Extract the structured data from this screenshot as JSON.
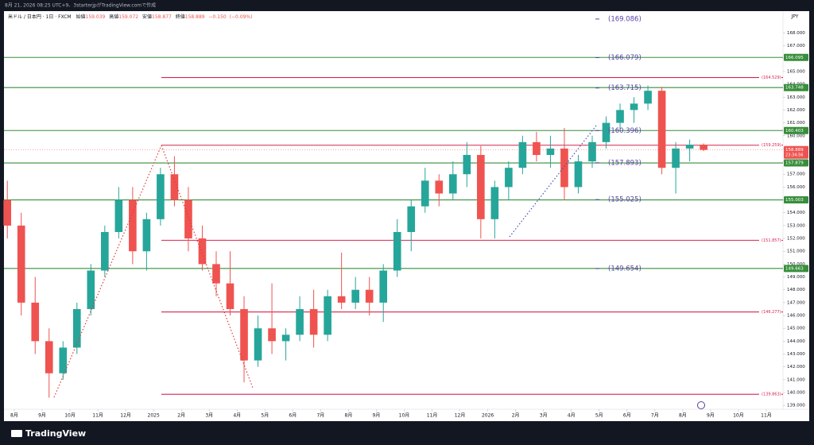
{
  "page_header": "8月 21, 2026 08:25 UTC+9、3starterjpがTradingView.comで作成",
  "footer_brand": "TradingView",
  "chart_data": {
    "type": "candlestick",
    "symbol": "米ドル / 日本円 · 1日 · FXCM",
    "ohlc_header": [
      {
        "name": "始値",
        "value": 159.039
      },
      {
        "name": "高値",
        "value": 159.072
      },
      {
        "name": "安値",
        "value": 158.877
      },
      {
        "name": "終値",
        "value": 158.889
      }
    ],
    "change": {
      "value": -0.15,
      "label": "−0.150"
    },
    "change_pct": {
      "value": -0.09,
      "label": "(−0.09%)"
    },
    "currency": "JPY",
    "last_price": 158.889,
    "countdown": "23:34:56",
    "up_color": "#26a69a",
    "down_color": "#ef5350",
    "xlim": [
      -0.37,
      27.6
    ],
    "ylim": [
      138.7,
      169.7
    ],
    "xticks": [
      {
        "value": 0,
        "label": "8月"
      },
      {
        "value": 1,
        "label": "9月"
      },
      {
        "value": 2,
        "label": "10月"
      },
      {
        "value": 3,
        "label": "11月"
      },
      {
        "value": 4,
        "label": "12月"
      },
      {
        "value": 5,
        "label": "2025"
      },
      {
        "value": 6,
        "label": "2月"
      },
      {
        "value": 7,
        "label": "3月"
      },
      {
        "value": 8,
        "label": "4月"
      },
      {
        "value": 9,
        "label": "5月"
      },
      {
        "value": 10,
        "label": "6月"
      },
      {
        "value": 11,
        "label": "7月"
      },
      {
        "value": 12,
        "label": "8月"
      },
      {
        "value": 13,
        "label": "9月"
      },
      {
        "value": 14,
        "label": "10月"
      },
      {
        "value": 15,
        "label": "11月"
      },
      {
        "value": 16,
        "label": "12月"
      },
      {
        "value": 17,
        "label": "2026"
      },
      {
        "value": 18,
        "label": "2月"
      },
      {
        "value": 19,
        "label": "3月"
      },
      {
        "value": 20,
        "label": "4月"
      },
      {
        "value": 21,
        "label": "5月"
      },
      {
        "value": 22,
        "label": "6月"
      },
      {
        "value": 23,
        "label": "7月"
      },
      {
        "value": 24,
        "label": "8月"
      },
      {
        "value": 25,
        "label": "9月"
      },
      {
        "value": 26,
        "label": "10月"
      },
      {
        "value": 27,
        "label": "11月"
      }
    ],
    "yticks": [
      {
        "value": 139,
        "label": "139.000"
      },
      {
        "value": 140,
        "label": "140.000"
      },
      {
        "value": 141,
        "label": "141.000"
      },
      {
        "value": 142,
        "label": "142.000"
      },
      {
        "value": 143,
        "label": "143.000"
      },
      {
        "value": 144,
        "label": "144.000"
      },
      {
        "value": 145,
        "label": "145.000"
      },
      {
        "value": 146,
        "label": "146.000"
      },
      {
        "value": 147,
        "label": "147.000"
      },
      {
        "value": 148,
        "label": "148.000"
      },
      {
        "value": 149,
        "label": "149.000"
      },
      {
        "value": 150,
        "label": "150.000"
      },
      {
        "value": 151,
        "label": "151.000"
      },
      {
        "value": 152,
        "label": "152.000"
      },
      {
        "value": 153,
        "label": "153.000"
      },
      {
        "value": 154,
        "label": "154.000"
      },
      {
        "value": 155,
        "label": "155.000"
      },
      {
        "value": 156,
        "label": "156.000"
      },
      {
        "value": 157,
        "label": "157.000"
      },
      {
        "value": 158,
        "label": "158.000"
      },
      {
        "value": 159,
        "label": "159.000"
      },
      {
        "value": 160,
        "label": "160.000"
      },
      {
        "value": 161,
        "label": "161.000"
      },
      {
        "value": 162,
        "label": "162.000"
      },
      {
        "value": 163,
        "label": "163.000"
      },
      {
        "value": 164,
        "label": "164.000"
      },
      {
        "value": 165,
        "label": "165.000"
      },
      {
        "value": 166,
        "label": "166.000"
      },
      {
        "value": 167,
        "label": "167.000"
      },
      {
        "value": 168,
        "label": "168.000"
      }
    ],
    "x": [
      -0.25,
      0.25,
      0.75,
      1.25,
      1.75,
      2.25,
      2.75,
      3.25,
      3.75,
      4.25,
      4.75,
      5.25,
      5.75,
      6.25,
      6.75,
      7.25,
      7.75,
      8.25,
      8.75,
      9.25,
      9.75,
      10.25,
      10.75,
      11.25,
      11.75,
      12.25,
      12.75,
      13.25,
      13.75,
      14.25,
      14.75,
      15.25,
      15.75,
      16.25,
      16.75,
      17.25,
      17.75,
      18.25,
      18.75,
      19.25,
      19.75,
      20.25,
      20.75,
      21.25,
      21.75,
      22.25,
      22.75,
      23.25,
      23.75,
      24.25,
      24.75
    ],
    "candles": [
      [
        155,
        156.5,
        152,
        153
      ],
      [
        153,
        154,
        146,
        147
      ],
      [
        147,
        149,
        143,
        144
      ],
      [
        144,
        145,
        139.6,
        141.5
      ],
      [
        141.5,
        144,
        141,
        143.5
      ],
      [
        143.5,
        147,
        143,
        146.5
      ],
      [
        146.5,
        150,
        146,
        149.5
      ],
      [
        149.5,
        153,
        149,
        152.5
      ],
      [
        152.5,
        156,
        152,
        155
      ],
      [
        155,
        156,
        150,
        151
      ],
      [
        151,
        154,
        149.5,
        153.5
      ],
      [
        153.5,
        157.5,
        153,
        157
      ],
      [
        157,
        158.4,
        154.5,
        155
      ],
      [
        155,
        156,
        151,
        152
      ],
      [
        152,
        153,
        149.5,
        150
      ],
      [
        150,
        151,
        147.5,
        148.5
      ],
      [
        148.5,
        151,
        146,
        146.5
      ],
      [
        146.5,
        147.5,
        140.8,
        142.5
      ],
      [
        142.5,
        146,
        142,
        145
      ],
      [
        145,
        148.5,
        143,
        144
      ],
      [
        144,
        145,
        142.5,
        144.5
      ],
      [
        144.5,
        147.5,
        144,
        146.5
      ],
      [
        146.5,
        148,
        143.5,
        144.5
      ],
      [
        144.5,
        148,
        144,
        147.5
      ],
      [
        147.5,
        150.9,
        146.5,
        147
      ],
      [
        147,
        149,
        146.5,
        148
      ],
      [
        148,
        149,
        146,
        147
      ],
      [
        147,
        150,
        145.5,
        149.5
      ],
      [
        149.5,
        153.5,
        149,
        152.5
      ],
      [
        152.5,
        155,
        151,
        154.5
      ],
      [
        154.5,
        157.5,
        154,
        156.5
      ],
      [
        156.5,
        157,
        154.5,
        155.5
      ],
      [
        155.5,
        158,
        155,
        157
      ],
      [
        157,
        159.5,
        156,
        158.5
      ],
      [
        158.5,
        159.2,
        152,
        153.5
      ],
      [
        153.5,
        156.5,
        152,
        156
      ],
      [
        156,
        158,
        155,
        157.5
      ],
      [
        157.5,
        160,
        157,
        159.5
      ],
      [
        159.5,
        160.3,
        158,
        158.5
      ],
      [
        158.5,
        160,
        157.5,
        159
      ],
      [
        159,
        160.6,
        155,
        156
      ],
      [
        156,
        158.5,
        155.5,
        158
      ],
      [
        158,
        160,
        157.5,
        159.5
      ],
      [
        159.5,
        161.5,
        159,
        161
      ],
      [
        161,
        162.5,
        160.5,
        162
      ],
      [
        162,
        163,
        161,
        162.5
      ],
      [
        162.5,
        163.9,
        162,
        163.5
      ],
      [
        163.5,
        163.8,
        157,
        157.5
      ],
      [
        157.5,
        159.5,
        155.5,
        159
      ],
      [
        159,
        159.7,
        158,
        159.3
      ],
      [
        159.3,
        159.4,
        158.8,
        158.9
      ]
    ],
    "levels": [
      {
        "value": 166.095,
        "color": "#388e3c"
      },
      {
        "value": 164.529,
        "label": "(164.529)",
        "color": "#d3264f"
      },
      {
        "value": 163.748,
        "color": "#388e3c"
      },
      {
        "value": 160.403,
        "color": "#388e3c"
      },
      {
        "value": 159.259,
        "label": "(159.259)",
        "color": "#d3264f"
      },
      {
        "value": 157.879,
        "color": "#388e3c"
      },
      {
        "value": 155.003,
        "color": "#388e3c"
      },
      {
        "value": 151.857,
        "label": "(151.857)",
        "color": "#d3264f"
      },
      {
        "value": 149.663,
        "color": "#388e3c"
      },
      {
        "value": 146.277,
        "label": "(146.277)",
        "color": "#d3264f"
      },
      {
        "value": 139.863,
        "label": "(139.863)",
        "color": "#d3264f"
      }
    ],
    "annotations": [
      {
        "value": 169.086,
        "label": "(169.086)"
      },
      {
        "value": 166.079,
        "label": "(166.079)"
      },
      {
        "value": 163.715,
        "label": "(163.715)"
      },
      {
        "value": 160.396,
        "label": "(160.396)"
      },
      {
        "value": 157.893,
        "label": "(157.893)"
      },
      {
        "value": 155.025,
        "label": "(155.025)"
      },
      {
        "value": 149.654,
        "label": "(149.654)"
      }
    ],
    "annotation_color": "#5b3fa6"
  }
}
